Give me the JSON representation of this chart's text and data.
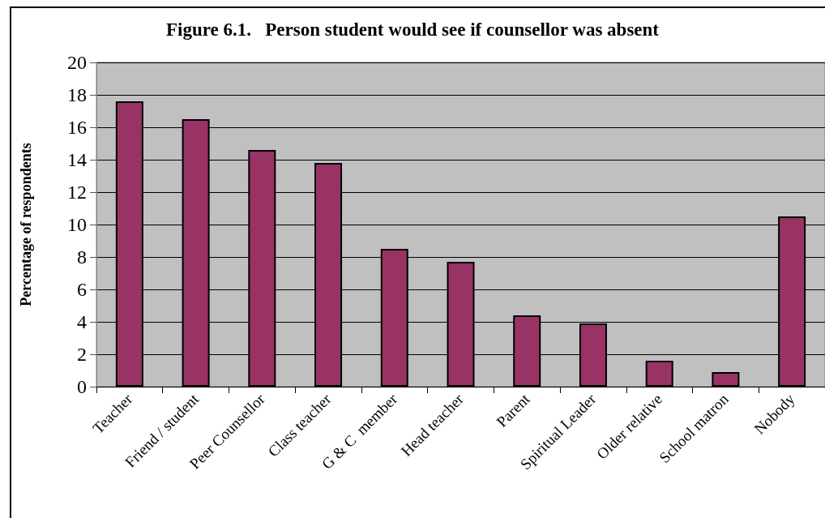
{
  "chart_data": {
    "type": "bar",
    "title": "Figure 6.1.   Person student would see if counsellor was absent",
    "ylabel": "Percentage of respondents",
    "categories": [
      "Teacher",
      "Friend / student",
      "Peer Counsellor",
      "Class teacher",
      "G & C  member",
      "Head teacher",
      "Parent",
      "Spiritual Leader",
      "Older relative",
      "School matron",
      "Nobody"
    ],
    "values": [
      17.6,
      16.5,
      14.6,
      13.8,
      8.5,
      7.7,
      4.4,
      3.9,
      1.6,
      0.9,
      10.5
    ],
    "color": "#993366",
    "ylim": [
      0,
      20
    ],
    "yticks": [
      0,
      2,
      4,
      6,
      8,
      10,
      12,
      14,
      16,
      18,
      20
    ],
    "grid": "y"
  }
}
